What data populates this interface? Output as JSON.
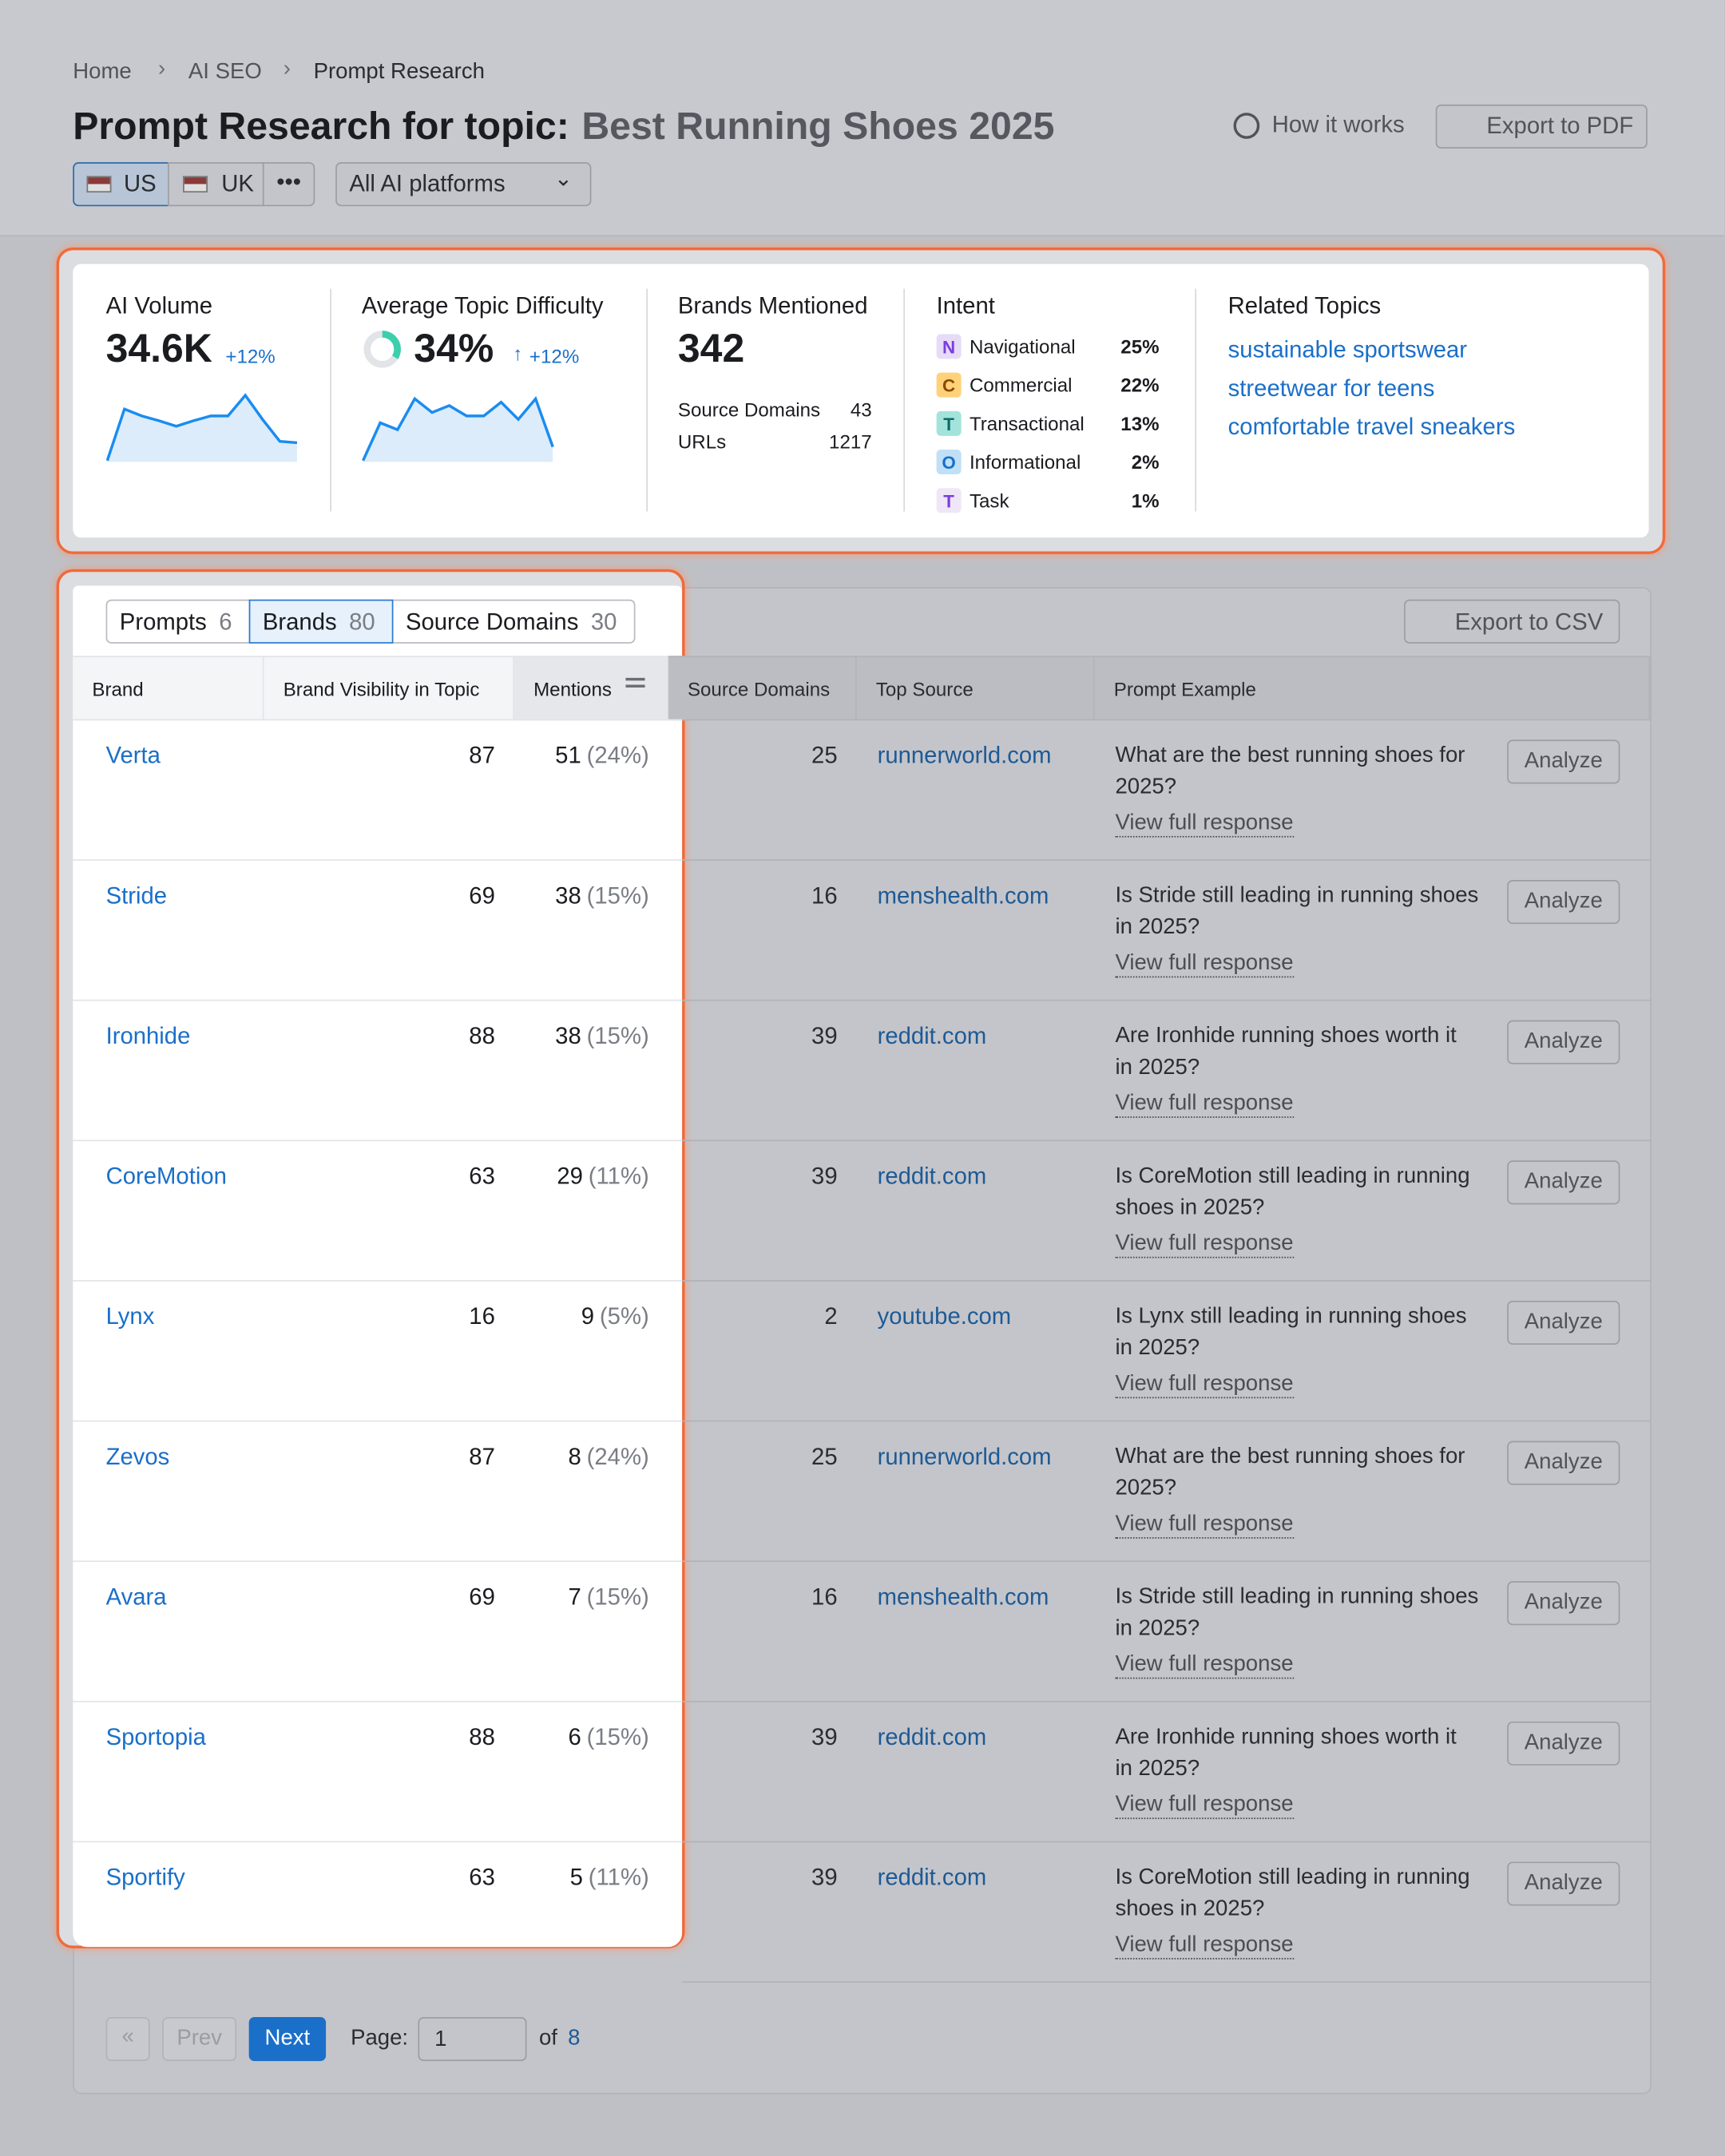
{
  "breadcrumb": [
    "Home",
    "AI SEO",
    "Prompt Research"
  ],
  "header": {
    "title": "Prompt Research for topic:",
    "topic": "Best Running Shoes 2025",
    "help": "How it works",
    "export": "Export to PDF",
    "locations": [
      "US",
      "UK"
    ],
    "platform": "All AI platforms"
  },
  "metrics": {
    "ai_volume": {
      "label": "AI Volume",
      "value": "34.6K",
      "change": "+12%",
      "sparkline": [
        0,
        75,
        65,
        58,
        50,
        58,
        65,
        65,
        95,
        60,
        28,
        26
      ]
    },
    "difficulty": {
      "label": "Average Topic Difficulty",
      "value": 34,
      "value_label": "34%",
      "change": "+12%",
      "sparkline": [
        0,
        55,
        45,
        90,
        70,
        80,
        65,
        65,
        85,
        60,
        90,
        20
      ]
    },
    "brands": {
      "label": "Brands Mentioned",
      "value": "342",
      "source_domains_label": "Source Domains",
      "source_domains": 43,
      "urls_label": "URLs",
      "urls": 1217
    },
    "intent": {
      "label": "Intent",
      "items": [
        {
          "letter": "N",
          "name": "Navigational",
          "share": "25%"
        },
        {
          "letter": "C",
          "name": "Commercial",
          "share": "22%"
        },
        {
          "letter": "T",
          "name": "Transactional",
          "share": "13%"
        },
        {
          "letter": "O",
          "name": "Informational",
          "share": "2%"
        },
        {
          "letter": "T",
          "name": "Task",
          "share": "1%"
        }
      ]
    },
    "related": {
      "label": "Related Topics",
      "items": [
        "sustainable sportswear",
        "streetwear for teens",
        "comfortable travel sneakers"
      ]
    }
  },
  "tabs": [
    {
      "label": "Prompts",
      "count": 6
    },
    {
      "label": "Brands",
      "count": 80
    },
    {
      "label": "Source Domains",
      "count": 30
    }
  ],
  "table": {
    "export": "Export to CSV",
    "columns": [
      "Brand",
      "Brand Visibility in Topic",
      "Mentions",
      "Source Domains",
      "Top Source",
      "Prompt Example"
    ],
    "link_text": "View full response",
    "action_text": "Analyze",
    "rows": [
      {
        "brand": "Verta",
        "visibility": 87,
        "mentions": 51,
        "share": "(24%)",
        "domains": 25,
        "source": "runnerworld.com",
        "prompt": "What are the best running shoes for 2025?"
      },
      {
        "brand": "Stride",
        "visibility": 69,
        "mentions": 38,
        "share": "(15%)",
        "domains": 16,
        "source": "menshealth.com",
        "prompt": "Is Stride still leading in running shoes in 2025?"
      },
      {
        "brand": "Ironhide",
        "visibility": 88,
        "mentions": 38,
        "share": "(15%)",
        "domains": 39,
        "source": "reddit.com",
        "prompt": "Are Ironhide running shoes worth it in 2025?"
      },
      {
        "brand": "CoreMotion",
        "visibility": 63,
        "mentions": 29,
        "share": "(11%)",
        "domains": 39,
        "source": "reddit.com",
        "prompt": "Is CoreMotion still leading in running shoes in 2025?"
      },
      {
        "brand": "Lynx",
        "visibility": 16,
        "mentions": 9,
        "share": "(5%)",
        "domains": 2,
        "source": "youtube.com",
        "prompt": "Is Lynx still leading in running shoes in 2025?"
      },
      {
        "brand": "Zevos",
        "visibility": 87,
        "mentions": 8,
        "share": "(24%)",
        "domains": 25,
        "source": "runnerworld.com",
        "prompt": "What are the best running shoes for 2025?"
      },
      {
        "brand": "Avara",
        "visibility": 69,
        "mentions": 7,
        "share": "(15%)",
        "domains": 16,
        "source": "menshealth.com",
        "prompt": "Is Stride still leading in running shoes in 2025?"
      },
      {
        "brand": "Sportopia",
        "visibility": 88,
        "mentions": 6,
        "share": "(15%)",
        "domains": 39,
        "source": "reddit.com",
        "prompt": "Are Ironhide running shoes worth it in 2025?"
      },
      {
        "brand": "Sportify",
        "visibility": 63,
        "mentions": 5,
        "share": "(11%)",
        "domains": 39,
        "source": "reddit.com",
        "prompt": "Is CoreMotion still leading in running shoes in 2025?"
      }
    ]
  },
  "pagination": {
    "prev": "Prev",
    "next": "Next",
    "page_label": "Page:",
    "page": "1",
    "of": "of",
    "total": 8
  }
}
